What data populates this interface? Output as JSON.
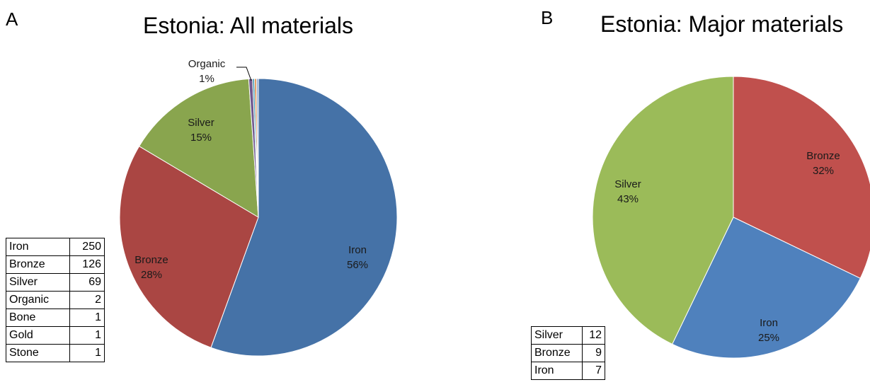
{
  "panels": [
    {
      "letter": "A",
      "title": "Estonia: All materials"
    },
    {
      "letter": "B",
      "title": "Estonia: Major materials"
    }
  ],
  "chart_data": [
    {
      "type": "pie",
      "title": "Estonia: All materials",
      "slices": [
        {
          "label": "Iron",
          "value": 250,
          "percent_label": "56%",
          "color": "#4572a7"
        },
        {
          "label": "Bronze",
          "value": 126,
          "percent_label": "28%",
          "color": "#aa4643"
        },
        {
          "label": "Silver",
          "value": 69,
          "percent_label": "15%",
          "color": "#89a54e"
        },
        {
          "label": "Organic",
          "value": 2,
          "percent_label": "1%",
          "color": "#71588f"
        },
        {
          "label": "Bone",
          "value": 1,
          "percent_label": "",
          "color": "#4198af"
        },
        {
          "label": "Gold",
          "value": 1,
          "percent_label": "",
          "color": "#db843d"
        },
        {
          "label": "Stone",
          "value": 1,
          "percent_label": "",
          "color": "#93a9cf"
        }
      ],
      "table": [
        {
          "label": "Iron",
          "value": "250"
        },
        {
          "label": "Bronze",
          "value": "126"
        },
        {
          "label": "Silver",
          "value": "69"
        },
        {
          "label": "Organic",
          "value": "2"
        },
        {
          "label": "Bone",
          "value": "1"
        },
        {
          "label": "Gold",
          "value": "1"
        },
        {
          "label": "Stone",
          "value": "1"
        }
      ]
    },
    {
      "type": "pie",
      "title": "Estonia: Major materials",
      "slices": [
        {
          "label": "Bronze",
          "value": 9,
          "percent_label": "32%",
          "color": "#c0504d"
        },
        {
          "label": "Iron",
          "value": 7,
          "percent_label": "25%",
          "color": "#4f81bd"
        },
        {
          "label": "Silver",
          "value": 12,
          "percent_label": "43%",
          "color": "#9bbb59"
        }
      ],
      "table": [
        {
          "label": "Silver",
          "value": "12"
        },
        {
          "label": "Bronze",
          "value": "9"
        },
        {
          "label": "Iron",
          "value": "7"
        }
      ]
    }
  ]
}
